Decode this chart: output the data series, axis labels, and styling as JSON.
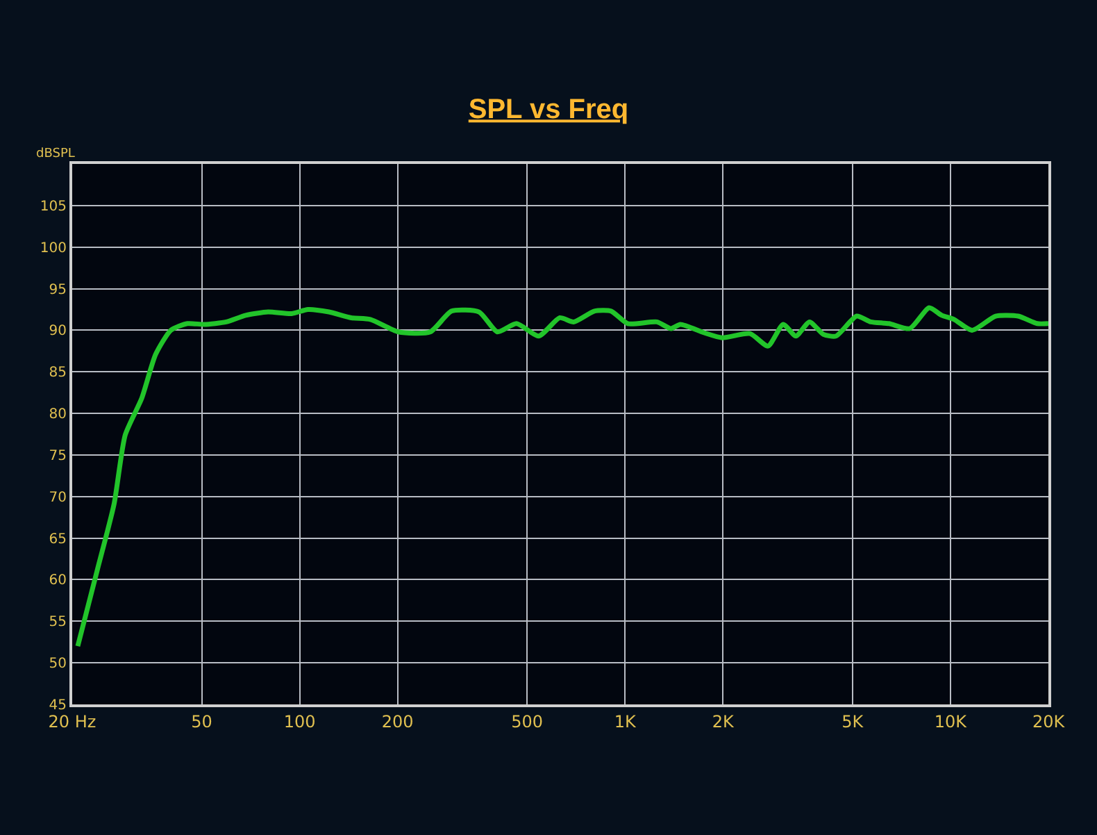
{
  "chart_data": {
    "type": "line",
    "title": "SPL vs Freq",
    "ylabel": "dBSPL",
    "log": "x",
    "grid": true,
    "marker": "none",
    "line_style": "solid",
    "xlim": [
      20,
      20000
    ],
    "xticks": [
      {
        "value": 20,
        "label": "20 Hz"
      },
      50,
      100,
      200,
      500,
      {
        "value": 1000,
        "label": "1K"
      },
      {
        "value": 2000,
        "label": "2K"
      },
      {
        "value": 5000,
        "label": "5K"
      },
      {
        "value": 10000,
        "label": "10K"
      },
      {
        "value": 20000,
        "label": "20K"
      }
    ],
    "ylim": [
      45,
      110
    ],
    "yticks": [
      45,
      50,
      55,
      60,
      65,
      70,
      75,
      80,
      85,
      90,
      95,
      100,
      105
    ],
    "x": [
      20.8,
      23.9,
      26.9,
      29.1,
      32.7,
      36.1,
      40.2,
      45.2,
      50.9,
      59.5,
      68.3,
      80,
      94.5,
      106,
      123,
      144,
      165,
      201,
      252,
      293,
      356,
      405,
      464,
      543,
      630,
      695,
      805,
      906,
      1019,
      1253,
      1383,
      1480,
      1750,
      1988,
      2420,
      2750,
      3062,
      3350,
      3690,
      4070,
      4450,
      5150,
      5690,
      6470,
      7500,
      8600,
      9400,
      10260,
      11660,
      13770,
      16140,
      18490,
      20000
    ],
    "series": [
      {
        "color": "#22c42a",
        "values": [
          52.0,
          61.2,
          69.1,
          77.4,
          81.8,
          87.1,
          90.0,
          90.8,
          90.7,
          91.0,
          91.8,
          92.2,
          92.0,
          92.5,
          92.2,
          91.5,
          91.3,
          89.8,
          89.8,
          92.3,
          92.2,
          89.8,
          90.8,
          89.3,
          91.5,
          91.0,
          92.3,
          92.3,
          90.8,
          91.0,
          90.2,
          90.7,
          89.7,
          89.1,
          89.6,
          88.1,
          90.7,
          89.3,
          91.0,
          89.5,
          89.3,
          91.7,
          91.0,
          90.8,
          90.2,
          92.7,
          91.8,
          91.3,
          90.0,
          91.7,
          91.7,
          90.8,
          90.8
        ]
      }
    ]
  }
}
